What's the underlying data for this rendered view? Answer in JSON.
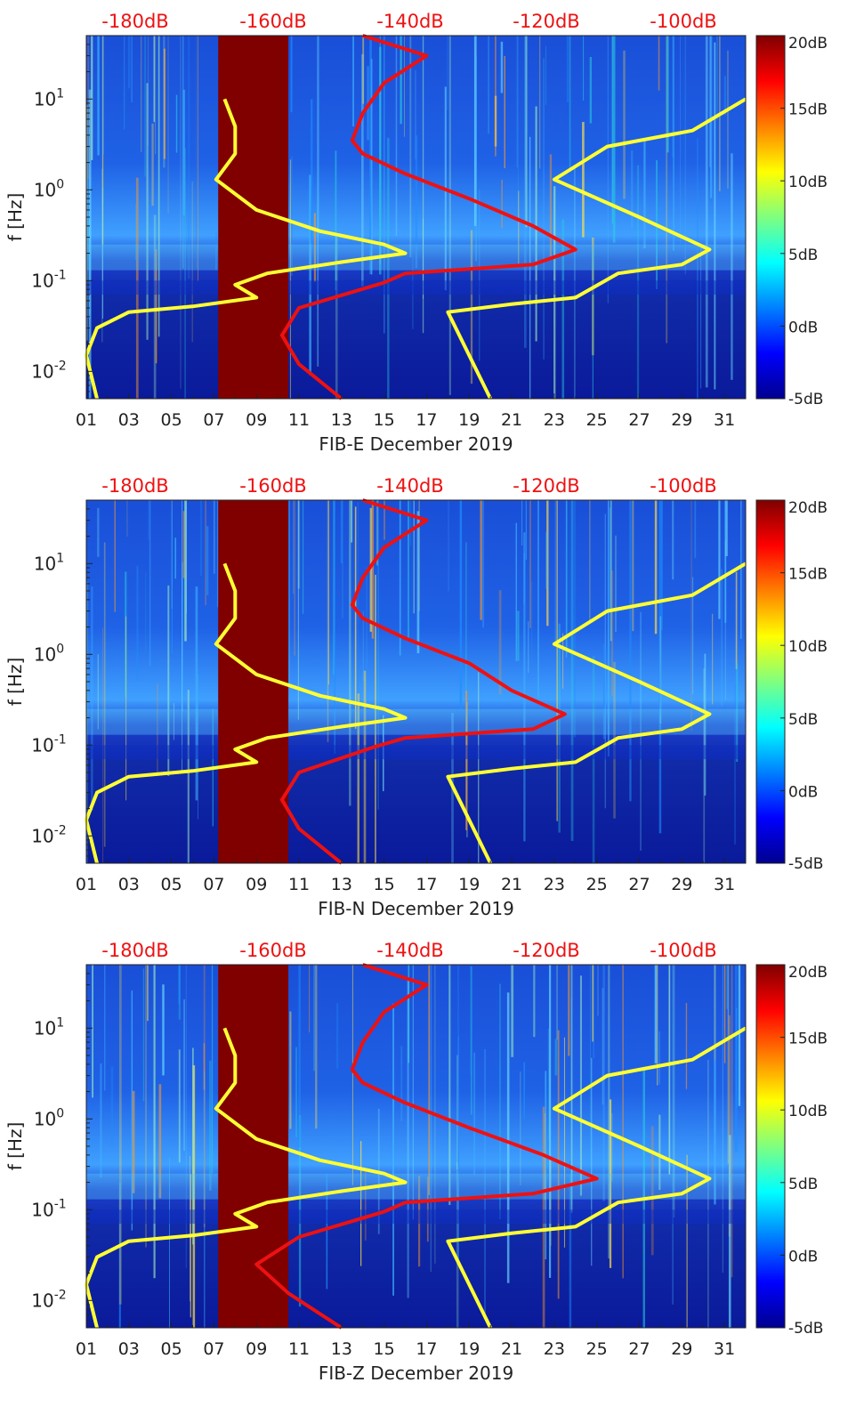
{
  "chart_data": [
    {
      "type": "heatmap",
      "title": "",
      "xlabel": "FIB-E December 2019",
      "ylabel": "f [Hz]",
      "y_scale": "log",
      "ylim": [
        0.005,
        50
      ],
      "xlim": [
        1,
        32
      ],
      "x_ticks": [
        "01",
        "03",
        "05",
        "07",
        "09",
        "11",
        "13",
        "15",
        "17",
        "19",
        "21",
        "23",
        "25",
        "27",
        "29",
        "31"
      ],
      "y_ticks": [
        "10^-2",
        "10^-1",
        "10^0",
        "10^1"
      ],
      "top_axis_labels": [
        "-180dB",
        "-160dB",
        "-140dB",
        "-120dB",
        "-100dB"
      ],
      "colorbar": {
        "labels": [
          "20dB",
          "15dB",
          "10dB",
          "5dB",
          "0dB",
          "-5dB"
        ],
        "range": [
          -5,
          20
        ],
        "colormap": "jet"
      },
      "gap": {
        "start_day": 7.2,
        "end_day": 10.5,
        "color": "#800000"
      },
      "series": [
        {
          "color": "#ffff33",
          "points": [
            [
              7.5,
              10
            ],
            [
              8.0,
              5.0
            ],
            [
              8.0,
              2.5
            ],
            [
              7.1,
              1.3
            ],
            [
              9.0,
              0.6
            ],
            [
              12.0,
              0.35
            ],
            [
              15.0,
              0.25
            ],
            [
              16.0,
              0.2
            ],
            [
              13.0,
              0.16
            ],
            [
              9.5,
              0.12
            ],
            [
              8.0,
              0.09
            ],
            [
              9.0,
              0.065
            ],
            [
              6.0,
              0.052
            ],
            [
              3.0,
              0.045
            ],
            [
              1.5,
              0.03
            ],
            [
              1.0,
              0.015
            ],
            [
              1.5,
              0.005
            ]
          ]
        },
        {
          "color": "#ffff33",
          "points": [
            [
              32,
              10
            ],
            [
              29.5,
              4.5
            ],
            [
              25.5,
              3.0
            ],
            [
              23.0,
              1.3
            ],
            [
              27.0,
              0.5
            ],
            [
              30.3,
              0.22
            ],
            [
              29.0,
              0.15
            ],
            [
              26.0,
              0.12
            ],
            [
              24.0,
              0.065
            ],
            [
              21.0,
              0.055
            ],
            [
              18.0,
              0.045
            ],
            [
              20.0,
              0.005
            ]
          ]
        },
        {
          "color": "#ee1111",
          "points": [
            [
              14.0,
              50
            ],
            [
              17.0,
              30
            ],
            [
              15.0,
              15
            ],
            [
              14.0,
              7
            ],
            [
              13.5,
              3.5
            ],
            [
              14.0,
              2.5
            ],
            [
              16.0,
              1.5
            ],
            [
              19.0,
              0.8
            ],
            [
              22.0,
              0.4
            ],
            [
              24.0,
              0.22
            ],
            [
              22.0,
              0.15
            ],
            [
              16.0,
              0.12
            ],
            [
              15.0,
              0.095
            ],
            [
              11.0,
              0.05
            ],
            [
              10.2,
              0.025
            ],
            [
              11.0,
              0.012
            ],
            [
              13.0,
              0.005
            ]
          ]
        }
      ]
    },
    {
      "type": "heatmap",
      "title": "",
      "xlabel": "FIB-N December 2019",
      "ylabel": "f [Hz]",
      "y_scale": "log",
      "ylim": [
        0.005,
        50
      ],
      "xlim": [
        1,
        32
      ],
      "x_ticks": [
        "01",
        "03",
        "05",
        "07",
        "09",
        "11",
        "13",
        "15",
        "17",
        "19",
        "21",
        "23",
        "25",
        "27",
        "29",
        "31"
      ],
      "y_ticks": [
        "10^-2",
        "10^-1",
        "10^0",
        "10^1"
      ],
      "top_axis_labels": [
        "-180dB",
        "-160dB",
        "-140dB",
        "-120dB",
        "-100dB"
      ],
      "colorbar": {
        "labels": [
          "20dB",
          "15dB",
          "10dB",
          "5dB",
          "0dB",
          "-5dB"
        ],
        "range": [
          -5,
          20
        ],
        "colormap": "jet"
      },
      "gap": {
        "start_day": 7.2,
        "end_day": 10.5,
        "color": "#800000"
      },
      "series": [
        {
          "color": "#ffff33",
          "points": [
            [
              7.5,
              10
            ],
            [
              8.0,
              5.0
            ],
            [
              8.0,
              2.5
            ],
            [
              7.1,
              1.3
            ],
            [
              9.0,
              0.6
            ],
            [
              12.0,
              0.35
            ],
            [
              15.0,
              0.25
            ],
            [
              16.0,
              0.2
            ],
            [
              13.0,
              0.16
            ],
            [
              9.5,
              0.12
            ],
            [
              8.0,
              0.09
            ],
            [
              9.0,
              0.065
            ],
            [
              6.0,
              0.052
            ],
            [
              3.0,
              0.045
            ],
            [
              1.5,
              0.03
            ],
            [
              1.0,
              0.015
            ],
            [
              1.5,
              0.005
            ]
          ]
        },
        {
          "color": "#ffff33",
          "points": [
            [
              32,
              10
            ],
            [
              29.5,
              4.5
            ],
            [
              25.5,
              3.0
            ],
            [
              23.0,
              1.3
            ],
            [
              27.0,
              0.5
            ],
            [
              30.3,
              0.22
            ],
            [
              29.0,
              0.15
            ],
            [
              26.0,
              0.12
            ],
            [
              24.0,
              0.065
            ],
            [
              21.0,
              0.055
            ],
            [
              18.0,
              0.045
            ],
            [
              20.0,
              0.005
            ]
          ]
        },
        {
          "color": "#ee1111",
          "points": [
            [
              14.0,
              50
            ],
            [
              17.0,
              30
            ],
            [
              15.0,
              15
            ],
            [
              14.0,
              7
            ],
            [
              13.5,
              3.5
            ],
            [
              14.0,
              2.5
            ],
            [
              16.0,
              1.5
            ],
            [
              19.0,
              0.8
            ],
            [
              21.0,
              0.4
            ],
            [
              23.5,
              0.22
            ],
            [
              22.0,
              0.15
            ],
            [
              16.0,
              0.12
            ],
            [
              14.5,
              0.095
            ],
            [
              11.0,
              0.05
            ],
            [
              10.2,
              0.025
            ],
            [
              11.0,
              0.012
            ],
            [
              13.0,
              0.005
            ]
          ]
        }
      ]
    },
    {
      "type": "heatmap",
      "title": "",
      "xlabel": "FIB-Z December 2019",
      "ylabel": "f [Hz]",
      "y_scale": "log",
      "ylim": [
        0.005,
        50
      ],
      "xlim": [
        1,
        32
      ],
      "x_ticks": [
        "01",
        "03",
        "05",
        "07",
        "09",
        "11",
        "13",
        "15",
        "17",
        "19",
        "21",
        "23",
        "25",
        "27",
        "29",
        "31"
      ],
      "y_ticks": [
        "10^-2",
        "10^-1",
        "10^0",
        "10^1"
      ],
      "top_axis_labels": [
        "-180dB",
        "-160dB",
        "-140dB",
        "-120dB",
        "-100dB"
      ],
      "colorbar": {
        "labels": [
          "20dB",
          "15dB",
          "10dB",
          "5dB",
          "0dB",
          "-5dB"
        ],
        "range": [
          -5,
          20
        ],
        "colormap": "jet"
      },
      "gap": {
        "start_day": 7.2,
        "end_day": 10.5,
        "color": "#800000"
      },
      "series": [
        {
          "color": "#ffff33",
          "points": [
            [
              7.5,
              10
            ],
            [
              8.0,
              5.0
            ],
            [
              8.0,
              2.5
            ],
            [
              7.1,
              1.3
            ],
            [
              9.0,
              0.6
            ],
            [
              12.0,
              0.35
            ],
            [
              15.0,
              0.25
            ],
            [
              16.0,
              0.2
            ],
            [
              13.0,
              0.16
            ],
            [
              9.5,
              0.12
            ],
            [
              8.0,
              0.09
            ],
            [
              9.0,
              0.065
            ],
            [
              6.0,
              0.052
            ],
            [
              3.0,
              0.045
            ],
            [
              1.5,
              0.03
            ],
            [
              1.0,
              0.015
            ],
            [
              1.5,
              0.005
            ]
          ]
        },
        {
          "color": "#ffff33",
          "points": [
            [
              32,
              10
            ],
            [
              29.5,
              4.5
            ],
            [
              25.5,
              3.0
            ],
            [
              23.0,
              1.3
            ],
            [
              27.0,
              0.5
            ],
            [
              30.3,
              0.22
            ],
            [
              29.0,
              0.15
            ],
            [
              26.0,
              0.12
            ],
            [
              24.0,
              0.065
            ],
            [
              21.0,
              0.055
            ],
            [
              18.0,
              0.045
            ],
            [
              20.0,
              0.005
            ]
          ]
        },
        {
          "color": "#ee1111",
          "points": [
            [
              14.0,
              50
            ],
            [
              17.0,
              30
            ],
            [
              15.0,
              15
            ],
            [
              14.0,
              7
            ],
            [
              13.5,
              3.5
            ],
            [
              14.0,
              2.5
            ],
            [
              16.0,
              1.5
            ],
            [
              19.0,
              0.8
            ],
            [
              22.5,
              0.4
            ],
            [
              25.0,
              0.22
            ],
            [
              22.0,
              0.15
            ],
            [
              16.0,
              0.12
            ],
            [
              15.0,
              0.095
            ],
            [
              11.0,
              0.05
            ],
            [
              9.0,
              0.025
            ],
            [
              10.5,
              0.012
            ],
            [
              13.0,
              0.005
            ]
          ]
        }
      ]
    }
  ]
}
